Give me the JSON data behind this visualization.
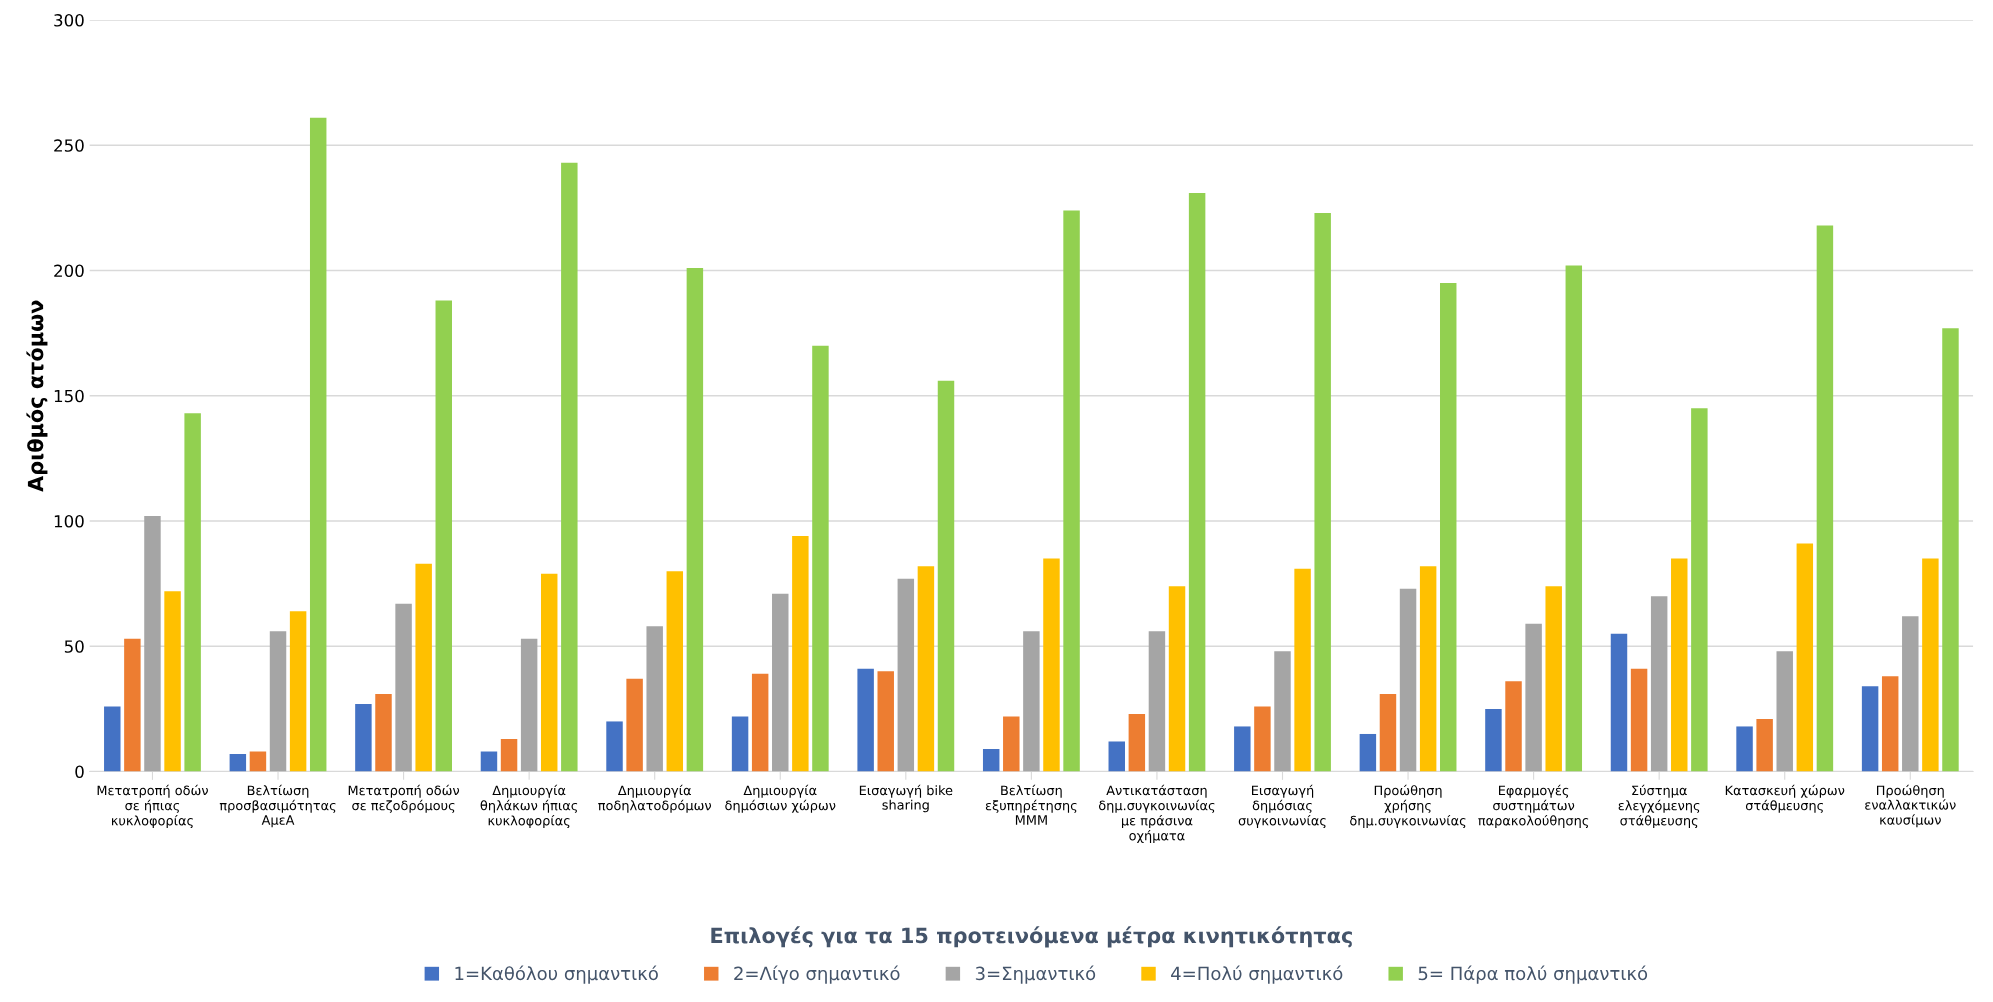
{
  "chart_data": {
    "type": "bar",
    "xlabel": "Επιλογές για τα 15 προτεινόμενα μέτρα κινητικότητας",
    "ylabel": "Αριθμός ατόμων",
    "categories": [
      "Μετατροπή οδών\nσε ήπιας\nκυκλοφορίας",
      "Βελτίωση\nπροσβασιμότητας\nΑμεΑ",
      "Μετατροπή οδών\nσε πεζοδρόμους",
      "Δημιουργία\nθηλάκων ήπιας\nκυκλοφορίας",
      "Δημιουργία\nποδηλατοδρόμων",
      "Δημιουργία\nδημόσιων χώρων",
      "Εισαγωγή bike\nsharing",
      "Βελτίωση\nεξυπηρέτησης\nΜΜΜ",
      "Αντικατάσταση\nδημ.συγκοινωνίας\nμε πράσινα\nοχήματα",
      "Εισαγωγή\nδημόσιας\nσυγκοινωνίας",
      "Προώθηση\nχρήσης\nδημ.συγκοινωνίας",
      "Εφαρμογές\nσυστημάτων\nπαρακολούθησης",
      "Σύστημα\nελεγχόμενης\nστάθμευσης",
      "Κατασκευή χώρων\nστάθμευσης",
      "Προώθηση\nεναλλακτικών\nκαυσίμων"
    ],
    "series": [
      {
        "name": "1=Καθόλου σημαντικό",
        "color": "#4472c4",
        "values": [
          26,
          7,
          27,
          8,
          20,
          22,
          41,
          9,
          12,
          18,
          15,
          25,
          55,
          18,
          34
        ]
      },
      {
        "name": "2=Λίγο σημαντικό",
        "color": "#ed7d31",
        "values": [
          53,
          8,
          31,
          13,
          37,
          39,
          40,
          22,
          23,
          26,
          31,
          36,
          41,
          21,
          38
        ]
      },
      {
        "name": "3=Σημαντικό",
        "color": "#a5a5a5",
        "values": [
          102,
          56,
          67,
          53,
          58,
          71,
          77,
          56,
          56,
          48,
          73,
          59,
          70,
          48,
          62
        ]
      },
      {
        "name": "4=Πολύ σημαντικό",
        "color": "#ffc000",
        "values": [
          72,
          64,
          83,
          79,
          80,
          94,
          82,
          85,
          74,
          81,
          82,
          74,
          85,
          91,
          85
        ]
      },
      {
        "name": "5= Πάρα πολύ σημαντικό",
        "color": "#92d050",
        "values": [
          143,
          261,
          188,
          243,
          201,
          170,
          156,
          224,
          231,
          223,
          195,
          202,
          145,
          218,
          177
        ]
      }
    ],
    "ylim": [
      0,
      300
    ],
    "yticks": [
      0,
      50,
      100,
      150,
      200,
      250,
      300
    ],
    "grid": "y",
    "legend": "bottom"
  }
}
